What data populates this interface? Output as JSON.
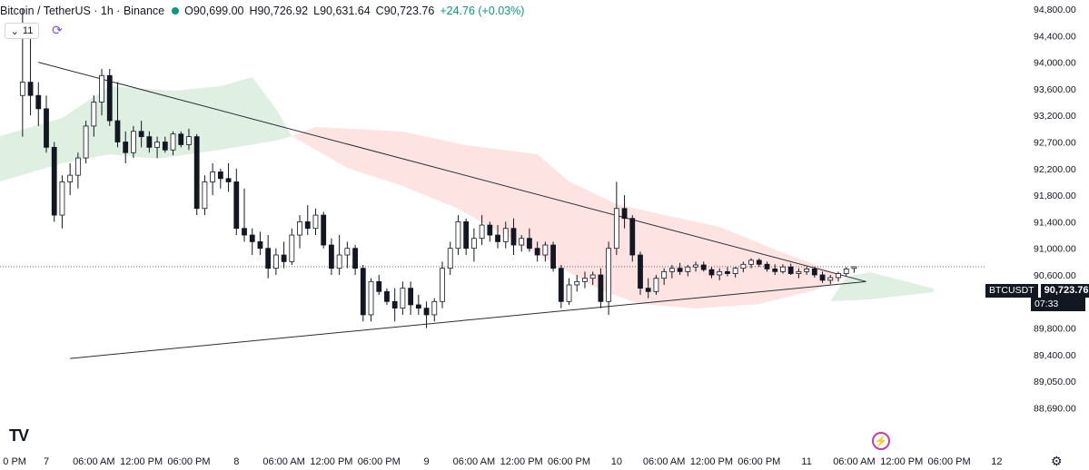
{
  "header": {
    "symbol": "Bitcoin / TetherUS · 1h · Binance",
    "open_label": "O",
    "open": "90,699.00",
    "high_label": "H",
    "high": "90,726.92",
    "low_label": "L",
    "low": "90,631.64",
    "close_label": "C",
    "close": "90,723.76",
    "change": "+24.76 (+0.03%)"
  },
  "indicators_toggle": "11",
  "price_tag": {
    "symbol": "BTCUSDT",
    "price": "90,723.76",
    "countdown": "07:33"
  },
  "logo_text": "TV",
  "colors": {
    "up": "#131722",
    "down": "#131722",
    "cloud_bull": "#dff0e2",
    "cloud_bear": "#fde3e2",
    "line": "#2a2e39"
  },
  "chart_data": {
    "type": "candlestick",
    "y_ticks": [
      "94,800.00",
      "94,400.00",
      "94,000.00",
      "93,600.00",
      "93,200.00",
      "92,700.00",
      "92,200.00",
      "91,800.00",
      "91,400.00",
      "91,000.00",
      "90,600.00",
      "90,200.00",
      "89,800.00",
      "89,400.00",
      "89,050.00",
      "88,690.00"
    ],
    "y_tick_values": [
      94800,
      94400,
      94000,
      93600,
      93200,
      92700,
      92200,
      91800,
      91400,
      91000,
      90600,
      90200,
      89800,
      89400,
      89050,
      88690
    ],
    "x_ticks": [
      "0 PM",
      "7",
      "06:00 AM",
      "12:00 PM",
      "06:00 PM",
      "8",
      "06:00 AM",
      "12:00 PM",
      "06:00 PM",
      "9",
      "06:00 AM",
      "12:00 PM",
      "06:00 PM",
      "10",
      "06:00 AM",
      "12:00 PM",
      "06:00 PM",
      "11",
      "06:00 AM",
      "12:00 PM",
      "06:00 PM",
      "12"
    ],
    "x_tick_hours": [
      -4,
      0,
      6,
      12,
      18,
      24,
      30,
      36,
      42,
      48,
      54,
      60,
      66,
      72,
      78,
      84,
      90,
      96,
      102,
      108,
      114,
      120
    ],
    "candles": [
      {
        "t": -3,
        "o": 93500,
        "h": 94800,
        "l": 92800,
        "c": 93700
      },
      {
        "t": -2,
        "o": 93700,
        "h": 94400,
        "l": 93200,
        "c": 93500
      },
      {
        "t": -1,
        "o": 93500,
        "h": 93700,
        "l": 93000,
        "c": 93300
      },
      {
        "t": 0,
        "o": 93300,
        "h": 93500,
        "l": 92500,
        "c": 92600
      },
      {
        "t": 1,
        "o": 92600,
        "h": 92700,
        "l": 91400,
        "c": 91500
      },
      {
        "t": 2,
        "o": 91500,
        "h": 92100,
        "l": 91300,
        "c": 92000
      },
      {
        "t": 3,
        "o": 92000,
        "h": 92300,
        "l": 91800,
        "c": 92100
      },
      {
        "t": 4,
        "o": 92100,
        "h": 92500,
        "l": 91900,
        "c": 92400
      },
      {
        "t": 5,
        "o": 92400,
        "h": 93100,
        "l": 92300,
        "c": 93000
      },
      {
        "t": 6,
        "o": 93000,
        "h": 93500,
        "l": 92800,
        "c": 93400
      },
      {
        "t": 7,
        "o": 93400,
        "h": 93900,
        "l": 93200,
        "c": 93800
      },
      {
        "t": 8,
        "o": 93800,
        "h": 93900,
        "l": 93000,
        "c": 93100
      },
      {
        "t": 9,
        "o": 93100,
        "h": 93700,
        "l": 92600,
        "c": 92700
      },
      {
        "t": 10,
        "o": 92700,
        "h": 92900,
        "l": 92300,
        "c": 92500
      },
      {
        "t": 11,
        "o": 92500,
        "h": 93000,
        "l": 92400,
        "c": 92900
      },
      {
        "t": 12,
        "o": 92900,
        "h": 93100,
        "l": 92600,
        "c": 92800
      },
      {
        "t": 13,
        "o": 92800,
        "h": 92900,
        "l": 92500,
        "c": 92600
      },
      {
        "t": 14,
        "o": 92600,
        "h": 92800,
        "l": 92400,
        "c": 92700
      },
      {
        "t": 15,
        "o": 92700,
        "h": 92800,
        "l": 92500,
        "c": 92550
      },
      {
        "t": 16,
        "o": 92550,
        "h": 92900,
        "l": 92450,
        "c": 92850
      },
      {
        "t": 17,
        "o": 92850,
        "h": 92900,
        "l": 92600,
        "c": 92650
      },
      {
        "t": 18,
        "o": 92650,
        "h": 92950,
        "l": 92550,
        "c": 92800
      },
      {
        "t": 19,
        "o": 92800,
        "h": 92850,
        "l": 91500,
        "c": 91600
      },
      {
        "t": 20,
        "o": 91600,
        "h": 92100,
        "l": 91500,
        "c": 92000
      },
      {
        "t": 21,
        "o": 92000,
        "h": 92300,
        "l": 91800,
        "c": 92150
      },
      {
        "t": 22,
        "o": 92150,
        "h": 92200,
        "l": 91900,
        "c": 92050
      },
      {
        "t": 23,
        "o": 92050,
        "h": 92300,
        "l": 91850,
        "c": 92000
      },
      {
        "t": 24,
        "o": 92000,
        "h": 92200,
        "l": 91200,
        "c": 91300
      },
      {
        "t": 25,
        "o": 91300,
        "h": 91900,
        "l": 91100,
        "c": 91200
      },
      {
        "t": 26,
        "o": 91200,
        "h": 91300,
        "l": 90900,
        "c": 91100
      },
      {
        "t": 27,
        "o": 91100,
        "h": 91250,
        "l": 90900,
        "c": 91000
      },
      {
        "t": 28,
        "o": 91000,
        "h": 91200,
        "l": 90550,
        "c": 90700
      },
      {
        "t": 29,
        "o": 90700,
        "h": 91000,
        "l": 90600,
        "c": 90900
      },
      {
        "t": 30,
        "o": 90900,
        "h": 91100,
        "l": 90700,
        "c": 90800
      },
      {
        "t": 31,
        "o": 90800,
        "h": 91300,
        "l": 90750,
        "c": 91200
      },
      {
        "t": 32,
        "o": 91200,
        "h": 91500,
        "l": 91000,
        "c": 91400
      },
      {
        "t": 33,
        "o": 91400,
        "h": 91650,
        "l": 91200,
        "c": 91300
      },
      {
        "t": 34,
        "o": 91300,
        "h": 91600,
        "l": 91200,
        "c": 91500
      },
      {
        "t": 35,
        "o": 91500,
        "h": 91550,
        "l": 91000,
        "c": 91050
      },
      {
        "t": 36,
        "o": 91050,
        "h": 91150,
        "l": 90600,
        "c": 90700
      },
      {
        "t": 37,
        "o": 90700,
        "h": 91200,
        "l": 90600,
        "c": 90900
      },
      {
        "t": 38,
        "o": 90900,
        "h": 91100,
        "l": 90700,
        "c": 91000
      },
      {
        "t": 39,
        "o": 91000,
        "h": 91050,
        "l": 90600,
        "c": 90700
      },
      {
        "t": 40,
        "o": 90700,
        "h": 90750,
        "l": 89900,
        "c": 90000
      },
      {
        "t": 41,
        "o": 90000,
        "h": 90550,
        "l": 89900,
        "c": 90500
      },
      {
        "t": 42,
        "o": 90500,
        "h": 90600,
        "l": 90300,
        "c": 90350
      },
      {
        "t": 43,
        "o": 90350,
        "h": 90400,
        "l": 90150,
        "c": 90200
      },
      {
        "t": 44,
        "o": 90200,
        "h": 90400,
        "l": 89900,
        "c": 90100
      },
      {
        "t": 45,
        "o": 90100,
        "h": 90500,
        "l": 90000,
        "c": 90400
      },
      {
        "t": 46,
        "o": 90400,
        "h": 90500,
        "l": 90000,
        "c": 90150
      },
      {
        "t": 47,
        "o": 90150,
        "h": 90300,
        "l": 90000,
        "c": 90100
      },
      {
        "t": 48,
        "o": 90100,
        "h": 90200,
        "l": 89800,
        "c": 90000
      },
      {
        "t": 49,
        "o": 90000,
        "h": 90250,
        "l": 89900,
        "c": 90200
      },
      {
        "t": 50,
        "o": 90200,
        "h": 90800,
        "l": 90100,
        "c": 90700
      },
      {
        "t": 51,
        "o": 90700,
        "h": 91100,
        "l": 90600,
        "c": 91000
      },
      {
        "t": 52,
        "o": 91000,
        "h": 91500,
        "l": 90900,
        "c": 91400
      },
      {
        "t": 53,
        "o": 91400,
        "h": 91450,
        "l": 90900,
        "c": 91000
      },
      {
        "t": 54,
        "o": 91000,
        "h": 91300,
        "l": 90800,
        "c": 91150
      },
      {
        "t": 55,
        "o": 91150,
        "h": 91500,
        "l": 91050,
        "c": 91350
      },
      {
        "t": 56,
        "o": 91350,
        "h": 91400,
        "l": 91100,
        "c": 91200
      },
      {
        "t": 57,
        "o": 91200,
        "h": 91350,
        "l": 91000,
        "c": 91100
      },
      {
        "t": 58,
        "o": 91100,
        "h": 91400,
        "l": 91000,
        "c": 91300
      },
      {
        "t": 59,
        "o": 91300,
        "h": 91450,
        "l": 90900,
        "c": 91050
      },
      {
        "t": 60,
        "o": 91050,
        "h": 91200,
        "l": 90950,
        "c": 91150
      },
      {
        "t": 61,
        "o": 91150,
        "h": 91300,
        "l": 90950,
        "c": 91000
      },
      {
        "t": 62,
        "o": 91000,
        "h": 91100,
        "l": 90800,
        "c": 90900
      },
      {
        "t": 63,
        "o": 90900,
        "h": 91100,
        "l": 90800,
        "c": 91050
      },
      {
        "t": 64,
        "o": 91050,
        "h": 91100,
        "l": 90650,
        "c": 90700
      },
      {
        "t": 65,
        "o": 90700,
        "h": 90750,
        "l": 90100,
        "c": 90200
      },
      {
        "t": 66,
        "o": 90200,
        "h": 90550,
        "l": 90150,
        "c": 90450
      },
      {
        "t": 67,
        "o": 90450,
        "h": 90600,
        "l": 90350,
        "c": 90500
      },
      {
        "t": 68,
        "o": 90500,
        "h": 90650,
        "l": 90400,
        "c": 90550
      },
      {
        "t": 69,
        "o": 90550,
        "h": 90650,
        "l": 90450,
        "c": 90600
      },
      {
        "t": 70,
        "o": 90600,
        "h": 90700,
        "l": 90100,
        "c": 90200
      },
      {
        "t": 71,
        "o": 90200,
        "h": 91100,
        "l": 90000,
        "c": 91000
      },
      {
        "t": 72,
        "o": 91000,
        "h": 92000,
        "l": 90900,
        "c": 91600
      },
      {
        "t": 73,
        "o": 91600,
        "h": 91800,
        "l": 91300,
        "c": 91450
      },
      {
        "t": 74,
        "o": 91450,
        "h": 91500,
        "l": 90800,
        "c": 90900
      },
      {
        "t": 75,
        "o": 90900,
        "h": 90950,
        "l": 90300,
        "c": 90400
      },
      {
        "t": 76,
        "o": 90400,
        "h": 90550,
        "l": 90250,
        "c": 90350
      },
      {
        "t": 77,
        "o": 90350,
        "h": 90600,
        "l": 90300,
        "c": 90550
      },
      {
        "t": 78,
        "o": 90550,
        "h": 90700,
        "l": 90450,
        "c": 90650
      },
      {
        "t": 79,
        "o": 90650,
        "h": 90750,
        "l": 90550,
        "c": 90700
      },
      {
        "t": 80,
        "o": 90700,
        "h": 90780,
        "l": 90600,
        "c": 90650
      },
      {
        "t": 81,
        "o": 90650,
        "h": 90750,
        "l": 90580,
        "c": 90720
      },
      {
        "t": 82,
        "o": 90720,
        "h": 90800,
        "l": 90650,
        "c": 90750
      },
      {
        "t": 83,
        "o": 90750,
        "h": 90800,
        "l": 90650,
        "c": 90680
      },
      {
        "t": 84,
        "o": 90680,
        "h": 90720,
        "l": 90550,
        "c": 90600
      },
      {
        "t": 85,
        "o": 90600,
        "h": 90700,
        "l": 90520,
        "c": 90650
      },
      {
        "t": 86,
        "o": 90650,
        "h": 90720,
        "l": 90580,
        "c": 90620
      },
      {
        "t": 87,
        "o": 90620,
        "h": 90720,
        "l": 90560,
        "c": 90700
      },
      {
        "t": 88,
        "o": 90700,
        "h": 90800,
        "l": 90640,
        "c": 90760
      },
      {
        "t": 89,
        "o": 90760,
        "h": 90850,
        "l": 90700,
        "c": 90820
      },
      {
        "t": 90,
        "o": 90820,
        "h": 90850,
        "l": 90720,
        "c": 90760
      },
      {
        "t": 91,
        "o": 90760,
        "h": 90800,
        "l": 90650,
        "c": 90690
      },
      {
        "t": 92,
        "o": 90690,
        "h": 90760,
        "l": 90600,
        "c": 90650
      },
      {
        "t": 93,
        "o": 90650,
        "h": 90760,
        "l": 90620,
        "c": 90720
      },
      {
        "t": 94,
        "o": 90720,
        "h": 90770,
        "l": 90600,
        "c": 90620
      },
      {
        "t": 95,
        "o": 90620,
        "h": 90700,
        "l": 90550,
        "c": 90650
      },
      {
        "t": 96,
        "o": 90650,
        "h": 90720,
        "l": 90600,
        "c": 90690
      },
      {
        "t": 97,
        "o": 90690,
        "h": 90720,
        "l": 90560,
        "c": 90600
      },
      {
        "t": 98,
        "o": 90600,
        "h": 90650,
        "l": 90480,
        "c": 90520
      },
      {
        "t": 99,
        "o": 90520,
        "h": 90600,
        "l": 90460,
        "c": 90560
      },
      {
        "t": 100,
        "o": 90560,
        "h": 90650,
        "l": 90500,
        "c": 90620
      },
      {
        "t": 101,
        "o": 90620,
        "h": 90720,
        "l": 90580,
        "c": 90690
      },
      {
        "t": 102,
        "o": 90699,
        "h": 90726.92,
        "l": 90631.64,
        "c": 90723.76
      }
    ],
    "trendlines": [
      {
        "from": {
          "t": -1,
          "price": 94000
        },
        "to": {
          "t": 103.5,
          "price": 90500
        }
      },
      {
        "from": {
          "t": 3,
          "price": 89350
        },
        "to": {
          "t": 103.5,
          "price": 90500
        }
      }
    ],
    "current_price": 90723.76
  }
}
